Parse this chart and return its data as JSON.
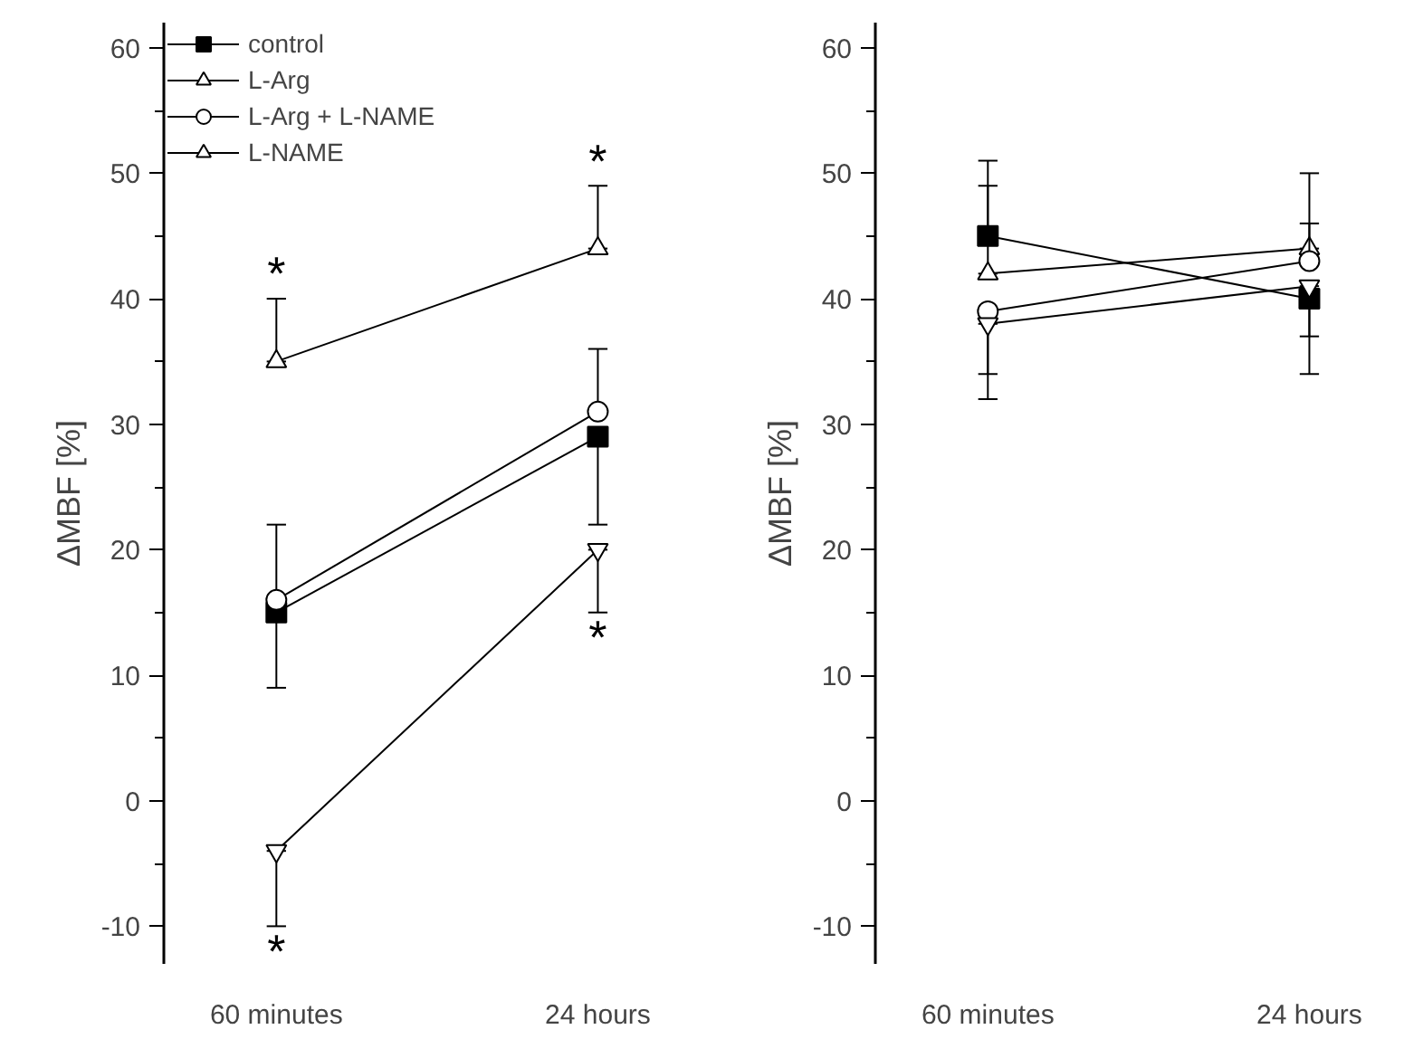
{
  "chart_data": [
    {
      "type": "line",
      "categories": [
        "60 minutes",
        "24 hours"
      ],
      "ylabel": "ΔMBF [%]",
      "ylim": [
        -13,
        62
      ],
      "yticks": [
        -10,
        0,
        10,
        20,
        30,
        40,
        50,
        60
      ],
      "grid": false,
      "legend": "top left",
      "series": [
        {
          "name": "control",
          "color": "#000000",
          "marker": "square",
          "values": [
            15,
            29
          ],
          "errors": [
            [
              9,
              15
            ],
            [
              22,
              29
            ]
          ]
        },
        {
          "name": "L-Arg",
          "color": "#000000",
          "marker": "triangle",
          "values": [
            35,
            44
          ],
          "errors": [
            [
              35,
              40
            ],
            [
              44,
              49
            ]
          ]
        },
        {
          "name": "L-Arg + L-NAME",
          "color": "#000000",
          "marker": "circle",
          "values": [
            16,
            31
          ],
          "errors": [
            [
              16,
              22
            ],
            [
              31,
              36
            ]
          ]
        },
        {
          "name": "L-NAME",
          "color": "#000000",
          "marker": "triangle",
          "values": [
            -4,
            20
          ],
          "errors": [
            [
              -10,
              -4
            ],
            [
              15,
              20
            ]
          ]
        }
      ],
      "annotations": [
        "*",
        "*",
        "*",
        "*"
      ]
    },
    {
      "type": "line",
      "categories": [
        "60 minutes",
        "24 hours"
      ],
      "ylabel": "ΔMBF [%]",
      "ylim": [
        -13,
        62
      ],
      "yticks": [
        -10,
        0,
        10,
        20,
        30,
        40,
        50,
        60
      ],
      "grid": false,
      "series": [
        {
          "color": "#000000",
          "marker": "square",
          "values": [
            45,
            40
          ],
          "errors": [
            [
              45,
              51
            ],
            [
              34,
              40
            ]
          ]
        },
        {
          "color": "#000000",
          "marker": "triangle",
          "values": [
            42,
            44
          ],
          "errors": [
            [
              42,
              49
            ],
            [
              44,
              50
            ]
          ]
        },
        {
          "color": "#000000",
          "marker": "circle",
          "values": [
            39,
            43
          ],
          "errors": [
            [
              34,
              39
            ],
            [
              43,
              46
            ]
          ]
        },
        {
          "color": "#000000",
          "marker": "triangle",
          "values": [
            38,
            41
          ],
          "errors": [
            [
              32,
              38
            ],
            [
              37,
              41
            ]
          ]
        }
      ]
    }
  ]
}
